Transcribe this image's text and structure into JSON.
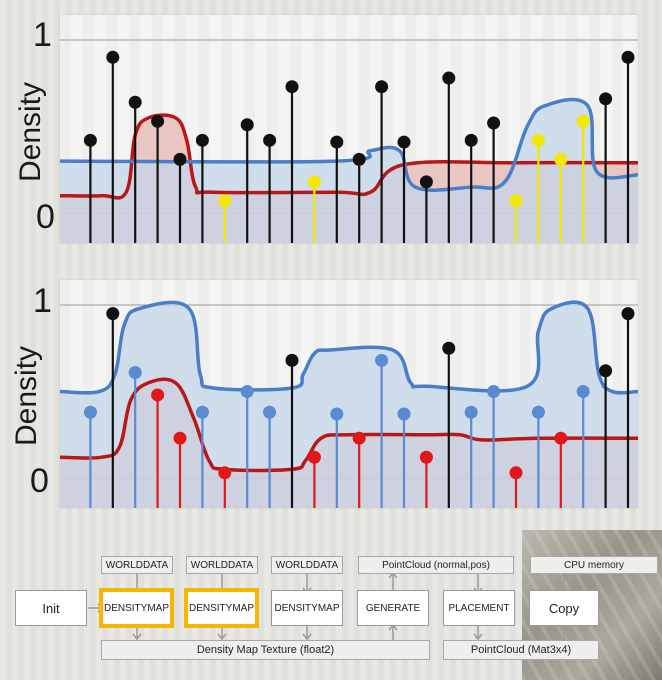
{
  "chart_data": [
    {
      "type": "stem",
      "ylabel": "Density",
      "yticks": [
        "0",
        "1"
      ],
      "ylim": [
        0,
        1
      ],
      "xlim": [
        0,
        25
      ],
      "series": [
        {
          "color": "#b81818",
          "fill": "#e8b8b4",
          "curve": [
            [
              0,
              0.1
            ],
            [
              1.5,
              0.1
            ],
            [
              2.6,
              0.12
            ],
            [
              3.0,
              0.45
            ],
            [
              3.6,
              0.55
            ],
            [
              4.8,
              0.55
            ],
            [
              5.3,
              0.42
            ],
            [
              5.7,
              0.15
            ],
            [
              6.5,
              0.12
            ],
            [
              12,
              0.12
            ],
            [
              13.5,
              0.12
            ],
            [
              15,
              0.28
            ],
            [
              20,
              0.29
            ],
            [
              25,
              0.29
            ]
          ]
        },
        {
          "color": "#4a7ec8",
          "fill": "#c4d6ea",
          "curve": [
            [
              0,
              0.3
            ],
            [
              12,
              0.3
            ],
            [
              13.5,
              0.36
            ],
            [
              14.8,
              0.36
            ],
            [
              15.5,
              0.15
            ],
            [
              18,
              0.15
            ],
            [
              19.5,
              0.18
            ],
            [
              20.5,
              0.5
            ],
            [
              21.3,
              0.62
            ],
            [
              23.2,
              0.62
            ],
            [
              23.6,
              0.24
            ],
            [
              25,
              0.22
            ]
          ]
        }
      ],
      "stems": [
        {
          "x": 1.0,
          "y": 0.42,
          "color": "#111111"
        },
        {
          "x": 2.0,
          "y": 0.9,
          "color": "#111111"
        },
        {
          "x": 3.0,
          "y": 0.64,
          "color": "#111111"
        },
        {
          "x": 4.0,
          "y": 0.53,
          "color": "#111111"
        },
        {
          "x": 5.0,
          "y": 0.31,
          "color": "#111111"
        },
        {
          "x": 6.0,
          "y": 0.42,
          "color": "#111111"
        },
        {
          "x": 7.0,
          "y": 0.07,
          "color": "#f2e800"
        },
        {
          "x": 8.0,
          "y": 0.51,
          "color": "#111111"
        },
        {
          "x": 9.0,
          "y": 0.42,
          "color": "#111111"
        },
        {
          "x": 10.0,
          "y": 0.73,
          "color": "#111111"
        },
        {
          "x": 11.0,
          "y": 0.18,
          "color": "#f2e800"
        },
        {
          "x": 12.0,
          "y": 0.41,
          "color": "#111111"
        },
        {
          "x": 13.0,
          "y": 0.31,
          "color": "#111111"
        },
        {
          "x": 14.0,
          "y": 0.73,
          "color": "#111111"
        },
        {
          "x": 15.0,
          "y": 0.41,
          "color": "#111111"
        },
        {
          "x": 16.0,
          "y": 0.18,
          "color": "#111111"
        },
        {
          "x": 17.0,
          "y": 0.78,
          "color": "#111111"
        },
        {
          "x": 18.0,
          "y": 0.42,
          "color": "#111111"
        },
        {
          "x": 19.0,
          "y": 0.52,
          "color": "#111111"
        },
        {
          "x": 20.0,
          "y": 0.07,
          "color": "#f2e800"
        },
        {
          "x": 21.0,
          "y": 0.42,
          "color": "#f2e800"
        },
        {
          "x": 22.0,
          "y": 0.31,
          "color": "#f2e800"
        },
        {
          "x": 23.0,
          "y": 0.53,
          "color": "#f2e800"
        },
        {
          "x": 24.0,
          "y": 0.66,
          "color": "#111111"
        },
        {
          "x": 25.0,
          "y": 0.9,
          "color": "#111111"
        }
      ]
    },
    {
      "type": "stem",
      "ylabel": "Density",
      "yticks": [
        "0",
        "1"
      ],
      "ylim": [
        0,
        1
      ],
      "xlim": [
        0,
        25
      ],
      "series": [
        {
          "color": "#b81818",
          "fill": "#e8b8b4",
          "curve": [
            [
              0,
              0.12
            ],
            [
              1.5,
              0.12
            ],
            [
              2.3,
              0.18
            ],
            [
              2.8,
              0.45
            ],
            [
              3.6,
              0.55
            ],
            [
              4.8,
              0.55
            ],
            [
              5.6,
              0.35
            ],
            [
              6.3,
              0.1
            ],
            [
              7,
              0.05
            ],
            [
              10,
              0.05
            ],
            [
              10.6,
              0.1
            ],
            [
              11.3,
              0.23
            ],
            [
              12.5,
              0.25
            ],
            [
              16,
              0.25
            ],
            [
              17.5,
              0.25
            ],
            [
              18.5,
              0.22
            ],
            [
              21,
              0.23
            ],
            [
              25,
              0.23
            ]
          ]
        },
        {
          "color": "#4a7ec8",
          "fill": "#c4d6ea",
          "curve": [
            [
              0,
              0.5
            ],
            [
              1.4,
              0.5
            ],
            [
              2.1,
              0.6
            ],
            [
              2.5,
              0.88
            ],
            [
              3.2,
              0.98
            ],
            [
              5.4,
              0.98
            ],
            [
              5.9,
              0.6
            ],
            [
              6.5,
              0.52
            ],
            [
              10,
              0.52
            ],
            [
              10.5,
              0.6
            ],
            [
              11,
              0.72
            ],
            [
              11.7,
              0.74
            ],
            [
              14.5,
              0.74
            ],
            [
              15.3,
              0.55
            ],
            [
              16,
              0.53
            ],
            [
              20.5,
              0.53
            ],
            [
              21.0,
              0.85
            ],
            [
              21.6,
              0.98
            ],
            [
              23.2,
              0.98
            ],
            [
              23.7,
              0.6
            ],
            [
              24.3,
              0.5
            ],
            [
              25,
              0.5
            ]
          ]
        }
      ],
      "stems": [
        {
          "x": 1.0,
          "y": 0.38,
          "color": "#5a8ad0"
        },
        {
          "x": 2.0,
          "y": 0.95,
          "color": "#111111"
        },
        {
          "x": 3.0,
          "y": 0.61,
          "color": "#5a8ad0"
        },
        {
          "x": 4.0,
          "y": 0.48,
          "color": "#e01818"
        },
        {
          "x": 5.0,
          "y": 0.23,
          "color": "#e01818"
        },
        {
          "x": 6.0,
          "y": 0.38,
          "color": "#5a8ad0"
        },
        {
          "x": 7.0,
          "y": 0.03,
          "color": "#e01818"
        },
        {
          "x": 8.0,
          "y": 0.5,
          "color": "#5a8ad0"
        },
        {
          "x": 9.0,
          "y": 0.38,
          "color": "#5a8ad0"
        },
        {
          "x": 10.0,
          "y": 0.68,
          "color": "#111111"
        },
        {
          "x": 11.0,
          "y": 0.12,
          "color": "#e01818"
        },
        {
          "x": 12.0,
          "y": 0.37,
          "color": "#5a8ad0"
        },
        {
          "x": 13.0,
          "y": 0.23,
          "color": "#e01818"
        },
        {
          "x": 14.0,
          "y": 0.68,
          "color": "#5a8ad0"
        },
        {
          "x": 15.0,
          "y": 0.37,
          "color": "#5a8ad0"
        },
        {
          "x": 16.0,
          "y": 0.12,
          "color": "#e01818"
        },
        {
          "x": 17.0,
          "y": 0.75,
          "color": "#111111"
        },
        {
          "x": 18.0,
          "y": 0.38,
          "color": "#5a8ad0"
        },
        {
          "x": 19.0,
          "y": 0.5,
          "color": "#5a8ad0"
        },
        {
          "x": 20.0,
          "y": 0.03,
          "color": "#e01818"
        },
        {
          "x": 21.0,
          "y": 0.38,
          "color": "#5a8ad0"
        },
        {
          "x": 22.0,
          "y": 0.23,
          "color": "#e01818"
        },
        {
          "x": 23.0,
          "y": 0.5,
          "color": "#5a8ad0"
        },
        {
          "x": 24.0,
          "y": 0.62,
          "color": "#111111"
        },
        {
          "x": 25.0,
          "y": 0.95,
          "color": "#111111"
        }
      ]
    }
  ],
  "pipeline": {
    "init": "Init",
    "top_inputs": [
      "WORLDDATA",
      "WORLDDATA",
      "WORLDDATA"
    ],
    "pointcloud_top": "PointCloud (normal,pos)",
    "cpu_memory": "CPU memory",
    "stages": [
      "DENSITYMAP",
      "DENSITYMAP",
      "DENSITYMAP",
      "GENERATE",
      "PLACEMENT"
    ],
    "copy": "Copy",
    "density_texture": "Density Map Texture (float2)",
    "pointcloud_bottom": "PointCloud (Mat3x4)",
    "highlight_color": "#f5b800"
  }
}
